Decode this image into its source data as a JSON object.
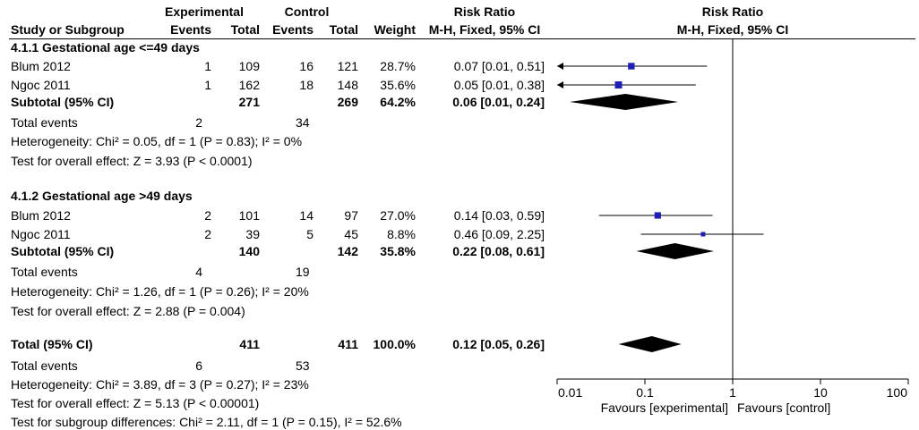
{
  "header": {
    "study_col": "Study or Subgroup",
    "exp_group": "Experimental",
    "ctrl_group": "Control",
    "events": "Events",
    "total": "Total",
    "weight": "Weight",
    "rr_title": "Risk Ratio",
    "rr_method": "M-H, Fixed, 95% CI",
    "plot_title": "Risk Ratio",
    "plot_method": "M-H, Fixed, 95% CI"
  },
  "groups": [
    {
      "title": "4.1.1 Gestational age <=49 days",
      "studies": [
        {
          "name": "Blum 2012",
          "exp_events": "1",
          "exp_total": "109",
          "ctrl_events": "16",
          "ctrl_total": "121",
          "weight": "28.7%",
          "rr_text": "0.07 [0.01, 0.51]"
        },
        {
          "name": "Ngoc 2011",
          "exp_events": "1",
          "exp_total": "162",
          "ctrl_events": "18",
          "ctrl_total": "148",
          "weight": "35.6%",
          "rr_text": "0.05 [0.01, 0.38]"
        }
      ],
      "subtotal": {
        "label": "Subtotal (95% CI)",
        "exp_total": "271",
        "ctrl_total": "269",
        "weight": "64.2%",
        "rr_text": "0.06 [0.01, 0.24]"
      },
      "total_events": {
        "label": "Total events",
        "exp": "2",
        "ctrl": "34"
      },
      "heterogeneity": "Heterogeneity: Chi² = 0.05, df = 1 (P = 0.83); I² = 0%",
      "overall_effect": "Test for overall effect: Z = 3.93 (P < 0.0001)"
    },
    {
      "title": "4.1.2 Gestational age >49 days",
      "studies": [
        {
          "name": "Blum 2012",
          "exp_events": "2",
          "exp_total": "101",
          "ctrl_events": "14",
          "ctrl_total": "97",
          "weight": "27.0%",
          "rr_text": "0.14 [0.03, 0.59]"
        },
        {
          "name": "Ngoc 2011",
          "exp_events": "2",
          "exp_total": "39",
          "ctrl_events": "5",
          "ctrl_total": "45",
          "weight": "8.8%",
          "rr_text": "0.46 [0.09, 2.25]"
        }
      ],
      "subtotal": {
        "label": "Subtotal (95% CI)",
        "exp_total": "140",
        "ctrl_total": "142",
        "weight": "35.8%",
        "rr_text": "0.22 [0.08, 0.61]"
      },
      "total_events": {
        "label": "Total events",
        "exp": "4",
        "ctrl": "19"
      },
      "heterogeneity": "Heterogeneity: Chi² = 1.26, df = 1 (P = 0.26); I² = 20%",
      "overall_effect": "Test for overall effect: Z = 2.88 (P = 0.004)"
    }
  ],
  "total": {
    "label": "Total (95% CI)",
    "exp_total": "411",
    "ctrl_total": "411",
    "weight": "100.0%",
    "rr_text": "0.12 [0.05, 0.26]",
    "events_label": "Total events",
    "exp_events": "6",
    "ctrl_events": "53",
    "heterogeneity": "Heterogeneity: Chi² = 3.89, df = 3 (P = 0.27); I² = 23%",
    "overall_effect": "Test for overall effect: Z = 5.13 (P < 0.00001)",
    "subgroup_diff": "Test for subgroup differences: Chi² = 2.11, df = 1 (P = 0.15), I² = 52.6%"
  },
  "colors": {
    "marker": "#1f1fb5",
    "diamond": "#000000",
    "line": "#000000"
  },
  "chart_data": {
    "type": "forest",
    "title": "Risk Ratio",
    "method": "M-H, Fixed, 95% CI",
    "scale": "log",
    "xlim": [
      0.01,
      100
    ],
    "ticks": [
      0.01,
      0.1,
      1,
      10,
      100
    ],
    "tick_labels": [
      "0.01",
      "0.1",
      "1",
      "10",
      "100"
    ],
    "null_value": 1,
    "left_label": "Favours [experimental]",
    "right_label": "Favours [control]",
    "studies": [
      {
        "name": "Blum 2012 (4.1.1)",
        "rr": 0.07,
        "lo": 0.01,
        "hi": 0.51,
        "weight": 28.7
      },
      {
        "name": "Ngoc 2011 (4.1.1)",
        "rr": 0.05,
        "lo": 0.01,
        "hi": 0.38,
        "weight": 35.6
      },
      {
        "name": "Blum 2012 (4.1.2)",
        "rr": 0.14,
        "lo": 0.03,
        "hi": 0.59,
        "weight": 27.0
      },
      {
        "name": "Ngoc 2011 (4.1.2)",
        "rr": 0.46,
        "lo": 0.09,
        "hi": 2.25,
        "weight": 8.8
      }
    ],
    "pooled": [
      {
        "name": "Subtotal 4.1.1",
        "rr": 0.06,
        "lo": 0.01,
        "hi": 0.24
      },
      {
        "name": "Subtotal 4.1.2",
        "rr": 0.22,
        "lo": 0.08,
        "hi": 0.61
      },
      {
        "name": "Total",
        "rr": 0.12,
        "lo": 0.05,
        "hi": 0.26
      }
    ]
  }
}
